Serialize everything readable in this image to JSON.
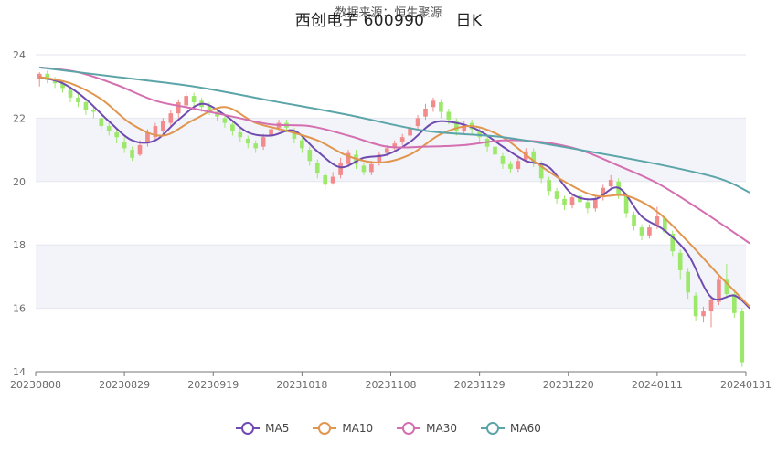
{
  "chart_data": {
    "type": "candlestick",
    "source": "数据来源：恒生聚源",
    "title_name": "西创电子 600990",
    "title_period": "日K",
    "ylim": [
      14,
      24
    ],
    "yticks": [
      "14",
      "16",
      "18",
      "20",
      "22",
      "24"
    ],
    "xticks": [
      "20230808",
      "20230829",
      "20230919",
      "20231018",
      "20231108",
      "20231129",
      "20231220",
      "20240111",
      "20240131"
    ],
    "colors": {
      "up": "#f28b8b",
      "down": "#9be86a",
      "MA5": "#6f4bb0",
      "MA10": "#e0964f",
      "MA30": "#d46fb0",
      "MA60": "#5ba5a8"
    },
    "legend": [
      "MA5",
      "MA10",
      "MA30",
      "MA60"
    ],
    "candles": [
      [
        23.25,
        23.4,
        23.0,
        23.45
      ],
      [
        23.4,
        23.2,
        23.1,
        23.5
      ],
      [
        23.2,
        23.1,
        22.95,
        23.3
      ],
      [
        23.1,
        22.95,
        22.8,
        23.2
      ],
      [
        22.9,
        22.65,
        22.5,
        23.0
      ],
      [
        22.65,
        22.5,
        22.35,
        22.8
      ],
      [
        22.5,
        22.25,
        22.1,
        22.6
      ],
      [
        22.25,
        22.2,
        22.0,
        22.4
      ],
      [
        22.0,
        21.75,
        21.6,
        22.1
      ],
      [
        21.75,
        21.6,
        21.45,
        21.85
      ],
      [
        21.55,
        21.4,
        21.2,
        21.7
      ],
      [
        21.25,
        21.05,
        20.9,
        21.4
      ],
      [
        21.0,
        20.75,
        20.65,
        21.1
      ],
      [
        20.85,
        21.15,
        20.8,
        21.3
      ],
      [
        21.2,
        21.55,
        21.1,
        21.65
      ],
      [
        21.4,
        21.75,
        21.3,
        21.85
      ],
      [
        21.6,
        21.9,
        21.45,
        22.0
      ],
      [
        21.85,
        22.15,
        21.7,
        22.25
      ],
      [
        22.15,
        22.5,
        22.0,
        22.6
      ],
      [
        22.4,
        22.7,
        22.3,
        22.8
      ],
      [
        22.7,
        22.5,
        22.35,
        22.8
      ],
      [
        22.55,
        22.35,
        22.2,
        22.65
      ],
      [
        22.4,
        22.25,
        22.1,
        22.5
      ],
      [
        22.2,
        22.05,
        21.9,
        22.3
      ],
      [
        22.0,
        21.85,
        21.7,
        22.1
      ],
      [
        21.8,
        21.6,
        21.45,
        21.9
      ],
      [
        21.55,
        21.4,
        21.25,
        21.7
      ],
      [
        21.35,
        21.2,
        21.05,
        21.45
      ],
      [
        21.2,
        21.05,
        20.9,
        21.3
      ],
      [
        21.1,
        21.4,
        21.0,
        21.5
      ],
      [
        21.45,
        21.65,
        21.35,
        21.75
      ],
      [
        21.7,
        21.85,
        21.6,
        21.95
      ],
      [
        21.85,
        21.7,
        21.55,
        21.95
      ],
      [
        21.6,
        21.35,
        21.2,
        21.7
      ],
      [
        21.3,
        21.05,
        20.9,
        21.4
      ],
      [
        21.0,
        20.65,
        20.5,
        21.1
      ],
      [
        20.6,
        20.25,
        20.1,
        20.7
      ],
      [
        20.2,
        19.9,
        19.75,
        20.3
      ],
      [
        19.95,
        20.15,
        19.9,
        20.3
      ],
      [
        20.2,
        20.6,
        20.1,
        20.75
      ],
      [
        20.55,
        20.9,
        20.45,
        21.0
      ],
      [
        20.85,
        20.55,
        20.4,
        21.0
      ],
      [
        20.5,
        20.3,
        20.2,
        20.6
      ],
      [
        20.3,
        20.55,
        20.2,
        20.65
      ],
      [
        20.6,
        20.85,
        20.5,
        20.95
      ],
      [
        20.9,
        21.05,
        20.8,
        21.15
      ],
      [
        21.05,
        21.2,
        20.95,
        21.3
      ],
      [
        21.25,
        21.4,
        21.15,
        21.5
      ],
      [
        21.45,
        21.7,
        21.35,
        21.8
      ],
      [
        21.75,
        22.0,
        21.65,
        22.1
      ],
      [
        22.05,
        22.3,
        21.95,
        22.45
      ],
      [
        22.35,
        22.55,
        22.2,
        22.65
      ],
      [
        22.5,
        22.2,
        22.0,
        22.6
      ],
      [
        22.2,
        21.95,
        21.8,
        22.3
      ],
      [
        21.9,
        21.6,
        21.45,
        22.0
      ],
      [
        21.6,
        21.8,
        21.5,
        21.9
      ],
      [
        21.85,
        21.65,
        21.5,
        21.95
      ],
      [
        21.6,
        21.4,
        21.25,
        21.7
      ],
      [
        21.35,
        21.1,
        20.95,
        21.45
      ],
      [
        21.1,
        20.85,
        20.7,
        21.2
      ],
      [
        20.8,
        20.55,
        20.4,
        20.9
      ],
      [
        20.55,
        20.4,
        20.25,
        20.65
      ],
      [
        20.4,
        20.65,
        20.3,
        20.75
      ],
      [
        20.7,
        20.95,
        20.6,
        21.05
      ],
      [
        20.95,
        20.6,
        20.45,
        21.05
      ],
      [
        20.55,
        20.1,
        19.95,
        20.65
      ],
      [
        20.05,
        19.7,
        19.55,
        20.15
      ],
      [
        19.7,
        19.45,
        19.3,
        19.8
      ],
      [
        19.45,
        19.25,
        19.1,
        19.55
      ],
      [
        19.25,
        19.5,
        19.15,
        19.6
      ],
      [
        19.55,
        19.35,
        19.2,
        19.65
      ],
      [
        19.35,
        19.15,
        19.0,
        19.45
      ],
      [
        19.15,
        19.45,
        19.05,
        19.55
      ],
      [
        19.5,
        19.8,
        19.4,
        19.9
      ],
      [
        19.85,
        20.05,
        19.75,
        20.2
      ],
      [
        20.0,
        19.6,
        19.45,
        20.1
      ],
      [
        19.55,
        19.0,
        18.85,
        19.65
      ],
      [
        18.95,
        18.6,
        18.45,
        19.05
      ],
      [
        18.55,
        18.3,
        18.15,
        18.65
      ],
      [
        18.3,
        18.55,
        18.2,
        18.65
      ],
      [
        18.6,
        18.9,
        18.5,
        19.2
      ],
      [
        18.85,
        18.4,
        18.25,
        18.95
      ],
      [
        18.35,
        17.8,
        17.65,
        18.45
      ],
      [
        17.75,
        17.2,
        16.9,
        17.85
      ],
      [
        17.15,
        16.5,
        16.3,
        17.25
      ],
      [
        16.4,
        15.75,
        15.6,
        16.5
      ],
      [
        15.75,
        15.9,
        15.55,
        16.05
      ],
      [
        15.9,
        16.25,
        15.4,
        16.4
      ],
      [
        16.2,
        16.9,
        16.1,
        17.0
      ],
      [
        16.9,
        16.45,
        16.3,
        17.4
      ],
      [
        16.45,
        15.85,
        15.7,
        16.5
      ],
      [
        15.9,
        14.3,
        14.15,
        16.0
      ]
    ],
    "series": [
      {
        "name": "MA5",
        "points": [
          [
            0,
            23.3
          ],
          [
            3,
            23.1
          ],
          [
            6,
            22.6
          ],
          [
            9,
            21.9
          ],
          [
            12,
            21.3
          ],
          [
            15,
            21.3
          ],
          [
            18,
            21.95
          ],
          [
            21,
            22.45
          ],
          [
            24,
            22.1
          ],
          [
            27,
            21.55
          ],
          [
            30,
            21.45
          ],
          [
            33,
            21.6
          ],
          [
            36,
            20.95
          ],
          [
            39,
            20.45
          ],
          [
            42,
            20.75
          ],
          [
            45,
            20.85
          ],
          [
            48,
            21.25
          ],
          [
            51,
            21.85
          ],
          [
            54,
            21.85
          ],
          [
            57,
            21.6
          ],
          [
            60,
            21.1
          ],
          [
            63,
            20.65
          ],
          [
            66,
            20.45
          ],
          [
            69,
            19.6
          ],
          [
            72,
            19.45
          ],
          [
            75,
            19.8
          ],
          [
            78,
            18.9
          ],
          [
            81,
            18.45
          ],
          [
            84,
            17.7
          ],
          [
            87,
            16.35
          ],
          [
            90,
            16.4
          ],
          [
            92,
            16.0
          ]
        ]
      },
      {
        "name": "MA10",
        "points": [
          [
            0,
            23.3
          ],
          [
            4,
            23.1
          ],
          [
            8,
            22.6
          ],
          [
            12,
            21.8
          ],
          [
            16,
            21.45
          ],
          [
            20,
            21.95
          ],
          [
            24,
            22.35
          ],
          [
            28,
            21.85
          ],
          [
            32,
            21.6
          ],
          [
            36,
            21.3
          ],
          [
            40,
            20.8
          ],
          [
            44,
            20.6
          ],
          [
            48,
            20.85
          ],
          [
            52,
            21.5
          ],
          [
            56,
            21.75
          ],
          [
            60,
            21.4
          ],
          [
            64,
            20.65
          ],
          [
            68,
            20.0
          ],
          [
            72,
            19.55
          ],
          [
            76,
            19.55
          ],
          [
            80,
            19.05
          ],
          [
            84,
            18.1
          ],
          [
            88,
            17.05
          ],
          [
            92,
            16.05
          ]
        ]
      },
      {
        "name": "MA30",
        "points": [
          [
            0,
            23.6
          ],
          [
            5,
            23.45
          ],
          [
            10,
            23.05
          ],
          [
            15,
            22.55
          ],
          [
            20,
            22.3
          ],
          [
            25,
            22.05
          ],
          [
            30,
            21.8
          ],
          [
            35,
            21.75
          ],
          [
            40,
            21.45
          ],
          [
            45,
            21.1
          ],
          [
            50,
            21.1
          ],
          [
            55,
            21.15
          ],
          [
            60,
            21.3
          ],
          [
            65,
            21.25
          ],
          [
            70,
            21.0
          ],
          [
            75,
            20.5
          ],
          [
            80,
            19.95
          ],
          [
            85,
            19.2
          ],
          [
            89,
            18.55
          ],
          [
            92,
            18.05
          ]
        ]
      },
      {
        "name": "MA60",
        "points": [
          [
            0,
            23.6
          ],
          [
            10,
            23.3
          ],
          [
            20,
            23.0
          ],
          [
            30,
            22.55
          ],
          [
            40,
            22.1
          ],
          [
            50,
            21.6
          ],
          [
            60,
            21.4
          ],
          [
            70,
            21.0
          ],
          [
            80,
            20.55
          ],
          [
            88,
            20.1
          ],
          [
            92,
            19.65
          ]
        ]
      }
    ]
  }
}
